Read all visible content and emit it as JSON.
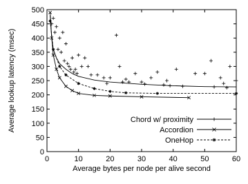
{
  "chart_data": {
    "type": "line",
    "xlabel": "Average bytes per node per alive second",
    "ylabel": "Average lookup latency (msec)",
    "xlim": [
      0,
      60
    ],
    "xticks": [
      0,
      10,
      20,
      30,
      40,
      50,
      60
    ],
    "ylim": [
      0,
      500
    ],
    "yticks": [
      0,
      50,
      100,
      150,
      200,
      250,
      300,
      350,
      400,
      450,
      500
    ],
    "legend": "lower right",
    "series": [
      {
        "name": "Chord w/ proximity",
        "color": "#000000",
        "marker": "+",
        "dash": false,
        "x": [
          1,
          1.5,
          2,
          3,
          4,
          6,
          8,
          10,
          15,
          20,
          30,
          40,
          50,
          60
        ],
        "values": [
          480,
          400,
          360,
          330,
          310,
          290,
          275,
          265,
          252,
          245,
          237,
          232,
          229,
          228
        ],
        "scatter_x": [
          1.5,
          2,
          2.5,
          3,
          3.5,
          4,
          4.5,
          5,
          5.5,
          6,
          6.5,
          7,
          7.5,
          8,
          8.5,
          9,
          9.5,
          10,
          11,
          12,
          13,
          14,
          16,
          18,
          19,
          20,
          22,
          23,
          24,
          25,
          26,
          28,
          30,
          31,
          33,
          35,
          37,
          38,
          39,
          41,
          43,
          47,
          50,
          52,
          53,
          55,
          56,
          57,
          58,
          60
        ],
        "scatter_y": [
          450,
          470,
          420,
          440,
          360,
          400,
          350,
          420,
          320,
          380,
          310,
          300,
          290,
          330,
          280,
          290,
          275,
          340,
          300,
          330,
          300,
          270,
          270,
          260,
          240,
          260,
          410,
          300,
          245,
          255,
          245,
          275,
          245,
          238,
          260,
          280,
          235,
          250,
          232,
          290,
          230,
          275,
          275,
          320,
          228,
          260,
          240,
          225,
          300,
          250
        ]
      },
      {
        "name": "Accordion",
        "color": "#000000",
        "marker": "x",
        "dash": false,
        "x": [
          1,
          1.5,
          2,
          3,
          4,
          6,
          8,
          10,
          15,
          20,
          30,
          45
        ],
        "values": [
          490,
          400,
          340,
          290,
          260,
          230,
          215,
          205,
          198,
          196,
          193,
          190
        ]
      },
      {
        "name": "OneHop",
        "color": "#000000",
        "marker": "*",
        "dash": true,
        "x": [
          1,
          2,
          4,
          6,
          10,
          15,
          20,
          25,
          35,
          60
        ],
        "values": [
          460,
          360,
          300,
          270,
          240,
          222,
          212,
          207,
          205,
          205
        ]
      }
    ]
  }
}
